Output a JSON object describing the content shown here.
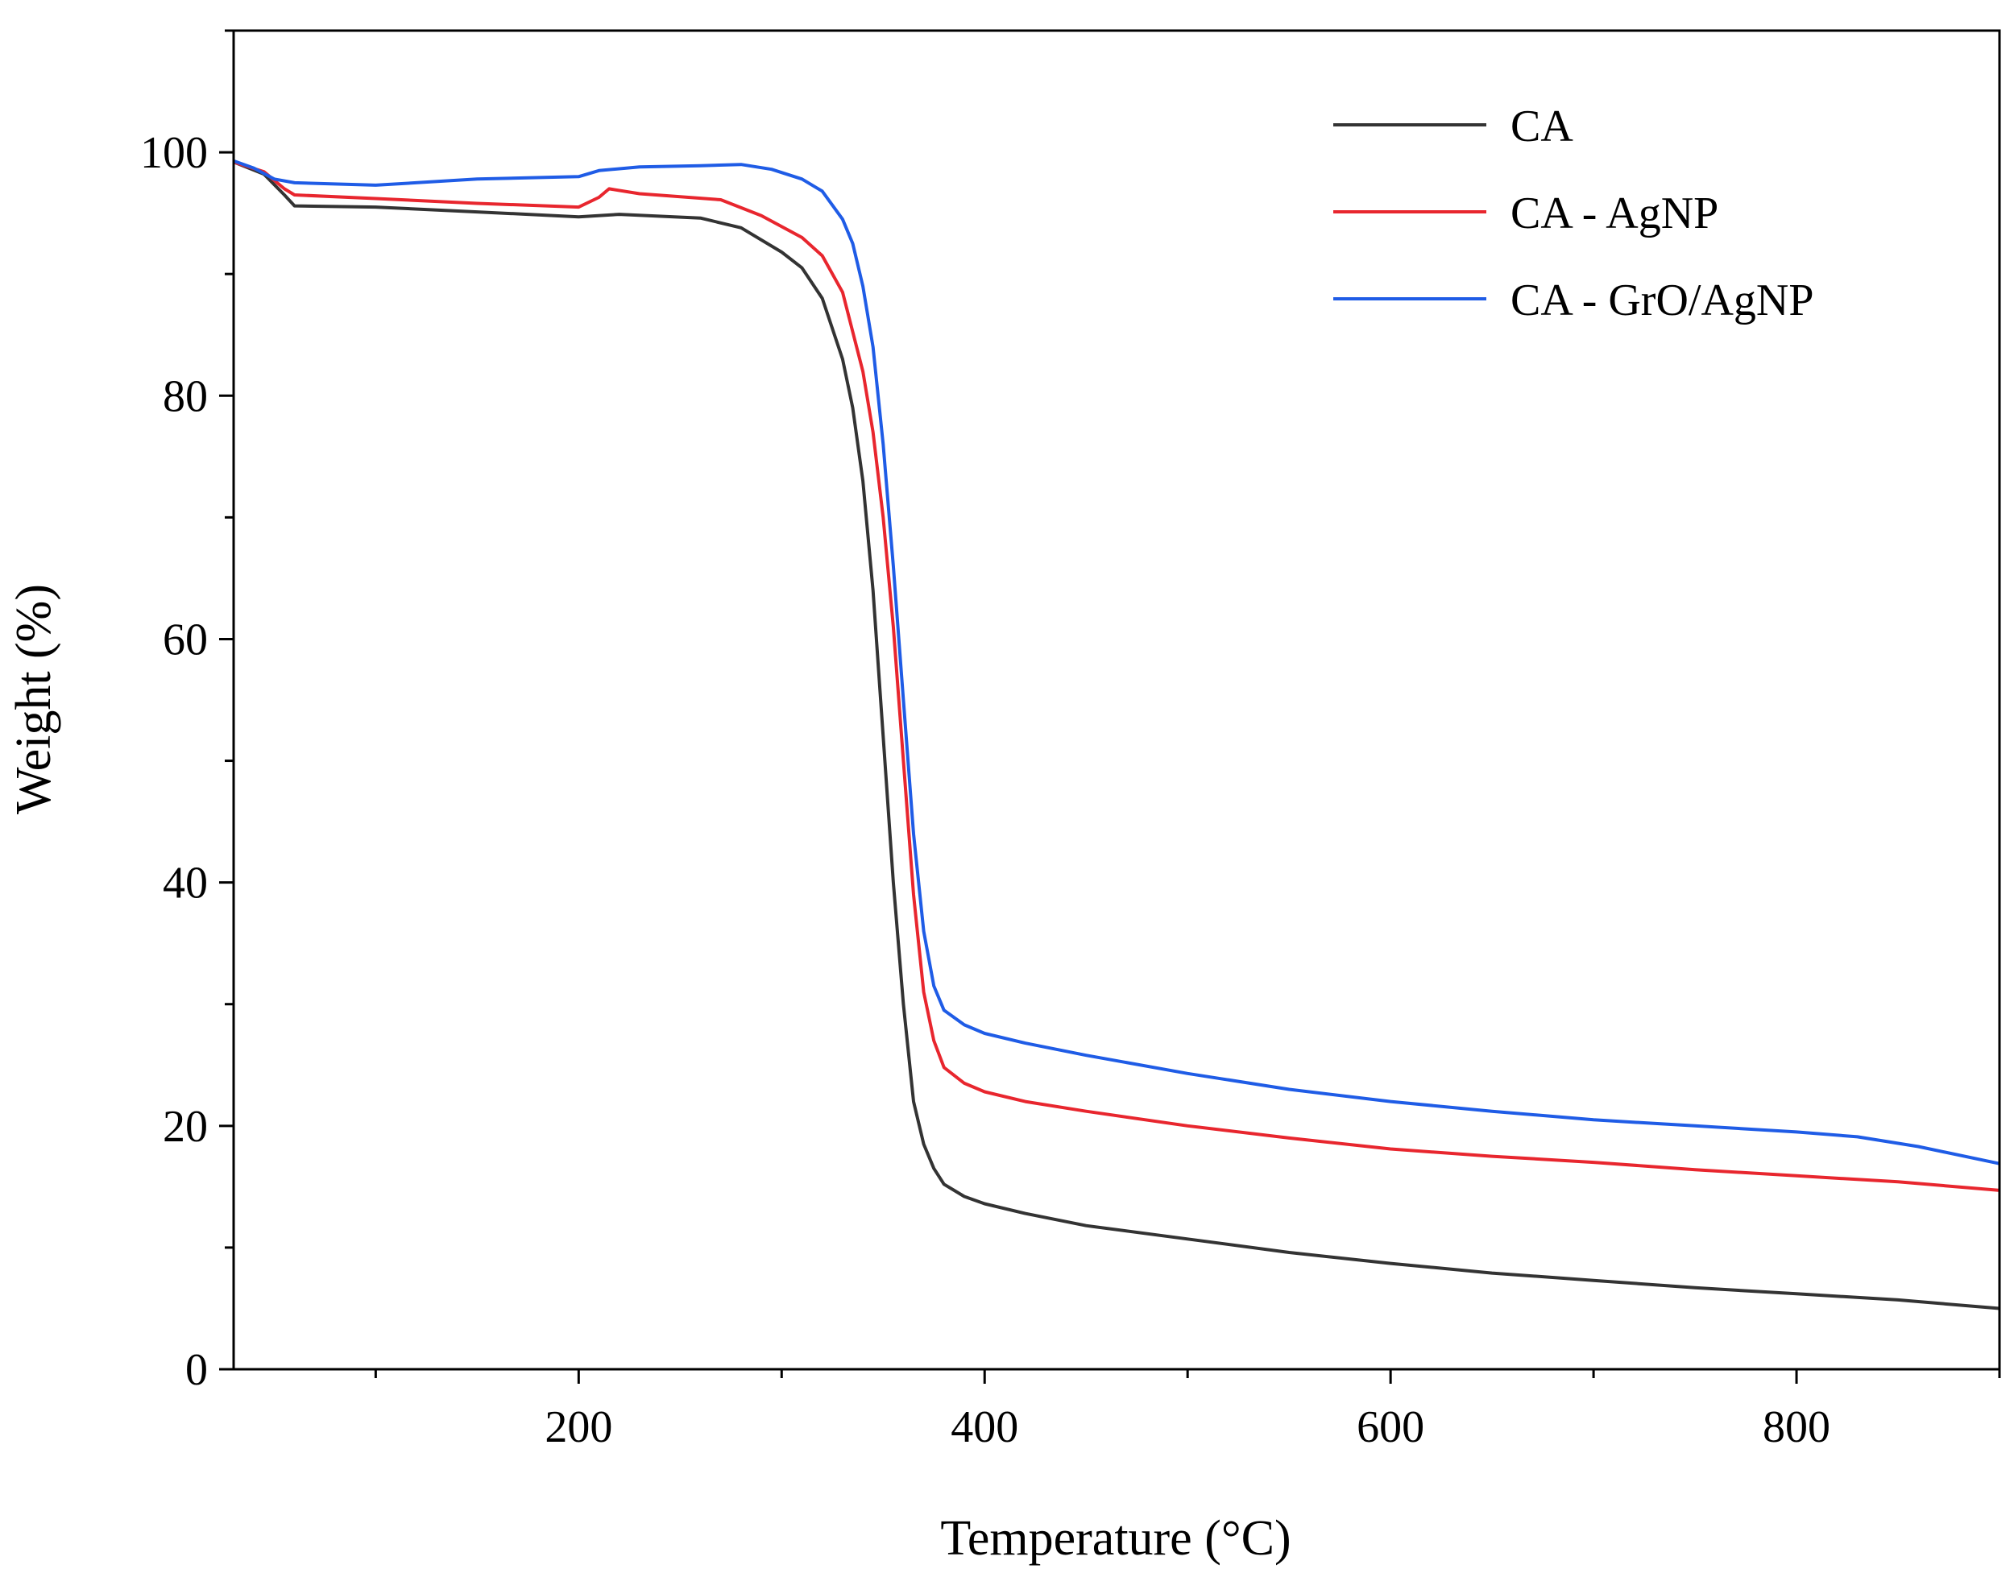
{
  "chart_data": {
    "type": "line",
    "title": "",
    "xlabel": "Temperature (°C)",
    "ylabel": "Weight (%)",
    "xlim": [
      30,
      900
    ],
    "ylim": [
      0,
      110
    ],
    "xticks": [
      200,
      400,
      600,
      800
    ],
    "yticks": [
      0,
      20,
      40,
      60,
      80,
      100
    ],
    "x_minor_step": 100,
    "y_minor_step": 10,
    "grid": false,
    "legend_position": "top-right",
    "series": [
      {
        "name": "CA",
        "color": "#333333",
        "points": [
          [
            30,
            99.2
          ],
          [
            45,
            98.2
          ],
          [
            55,
            96.5
          ],
          [
            60,
            95.6
          ],
          [
            100,
            95.5
          ],
          [
            150,
            95.1
          ],
          [
            200,
            94.7
          ],
          [
            220,
            94.9
          ],
          [
            260,
            94.6
          ],
          [
            280,
            93.8
          ],
          [
            300,
            91.8
          ],
          [
            310,
            90.5
          ],
          [
            320,
            88
          ],
          [
            330,
            83
          ],
          [
            335,
            79
          ],
          [
            340,
            73
          ],
          [
            345,
            64
          ],
          [
            350,
            52
          ],
          [
            355,
            40
          ],
          [
            360,
            30
          ],
          [
            365,
            22
          ],
          [
            370,
            18.5
          ],
          [
            375,
            16.5
          ],
          [
            380,
            15.2
          ],
          [
            390,
            14.2
          ],
          [
            400,
            13.6
          ],
          [
            420,
            12.8
          ],
          [
            450,
            11.8
          ],
          [
            500,
            10.7
          ],
          [
            550,
            9.6
          ],
          [
            600,
            8.7
          ],
          [
            650,
            7.9
          ],
          [
            700,
            7.3
          ],
          [
            750,
            6.7
          ],
          [
            800,
            6.2
          ],
          [
            850,
            5.7
          ],
          [
            900,
            5.0
          ]
        ]
      },
      {
        "name": "CA - AgNP",
        "color": "#e8262e",
        "points": [
          [
            30,
            99.2
          ],
          [
            45,
            98.4
          ],
          [
            55,
            97.0
          ],
          [
            60,
            96.5
          ],
          [
            100,
            96.2
          ],
          [
            150,
            95.8
          ],
          [
            200,
            95.5
          ],
          [
            210,
            96.3
          ],
          [
            215,
            97.0
          ],
          [
            230,
            96.6
          ],
          [
            270,
            96.1
          ],
          [
            290,
            94.8
          ],
          [
            310,
            93.0
          ],
          [
            320,
            91.5
          ],
          [
            330,
            88.5
          ],
          [
            340,
            82
          ],
          [
            345,
            77
          ],
          [
            350,
            70
          ],
          [
            355,
            61
          ],
          [
            360,
            50
          ],
          [
            365,
            39
          ],
          [
            370,
            31
          ],
          [
            375,
            27
          ],
          [
            380,
            24.8
          ],
          [
            390,
            23.5
          ],
          [
            400,
            22.8
          ],
          [
            420,
            22.0
          ],
          [
            450,
            21.2
          ],
          [
            500,
            20
          ],
          [
            550,
            19
          ],
          [
            600,
            18.1
          ],
          [
            650,
            17.5
          ],
          [
            700,
            17.0
          ],
          [
            750,
            16.4
          ],
          [
            800,
            15.9
          ],
          [
            850,
            15.4
          ],
          [
            900,
            14.7
          ]
        ]
      },
      {
        "name": "CA - GrO/AgNP",
        "color": "#1f5ce6",
        "points": [
          [
            30,
            99.3
          ],
          [
            40,
            98.7
          ],
          [
            50,
            97.8
          ],
          [
            60,
            97.5
          ],
          [
            100,
            97.3
          ],
          [
            150,
            97.8
          ],
          [
            200,
            98.0
          ],
          [
            210,
            98.5
          ],
          [
            230,
            98.8
          ],
          [
            260,
            98.9
          ],
          [
            280,
            99.0
          ],
          [
            295,
            98.6
          ],
          [
            310,
            97.8
          ],
          [
            320,
            96.8
          ],
          [
            330,
            94.5
          ],
          [
            335,
            92.5
          ],
          [
            340,
            89
          ],
          [
            345,
            84
          ],
          [
            350,
            76
          ],
          [
            355,
            66
          ],
          [
            360,
            55
          ],
          [
            365,
            44
          ],
          [
            370,
            36
          ],
          [
            375,
            31.5
          ],
          [
            380,
            29.5
          ],
          [
            390,
            28.3
          ],
          [
            400,
            27.6
          ],
          [
            420,
            26.8
          ],
          [
            450,
            25.8
          ],
          [
            500,
            24.3
          ],
          [
            550,
            23.0
          ],
          [
            600,
            22.0
          ],
          [
            650,
            21.2
          ],
          [
            700,
            20.5
          ],
          [
            750,
            20.0
          ],
          [
            800,
            19.5
          ],
          [
            830,
            19.1
          ],
          [
            860,
            18.3
          ],
          [
            900,
            16.9
          ]
        ]
      }
    ]
  }
}
